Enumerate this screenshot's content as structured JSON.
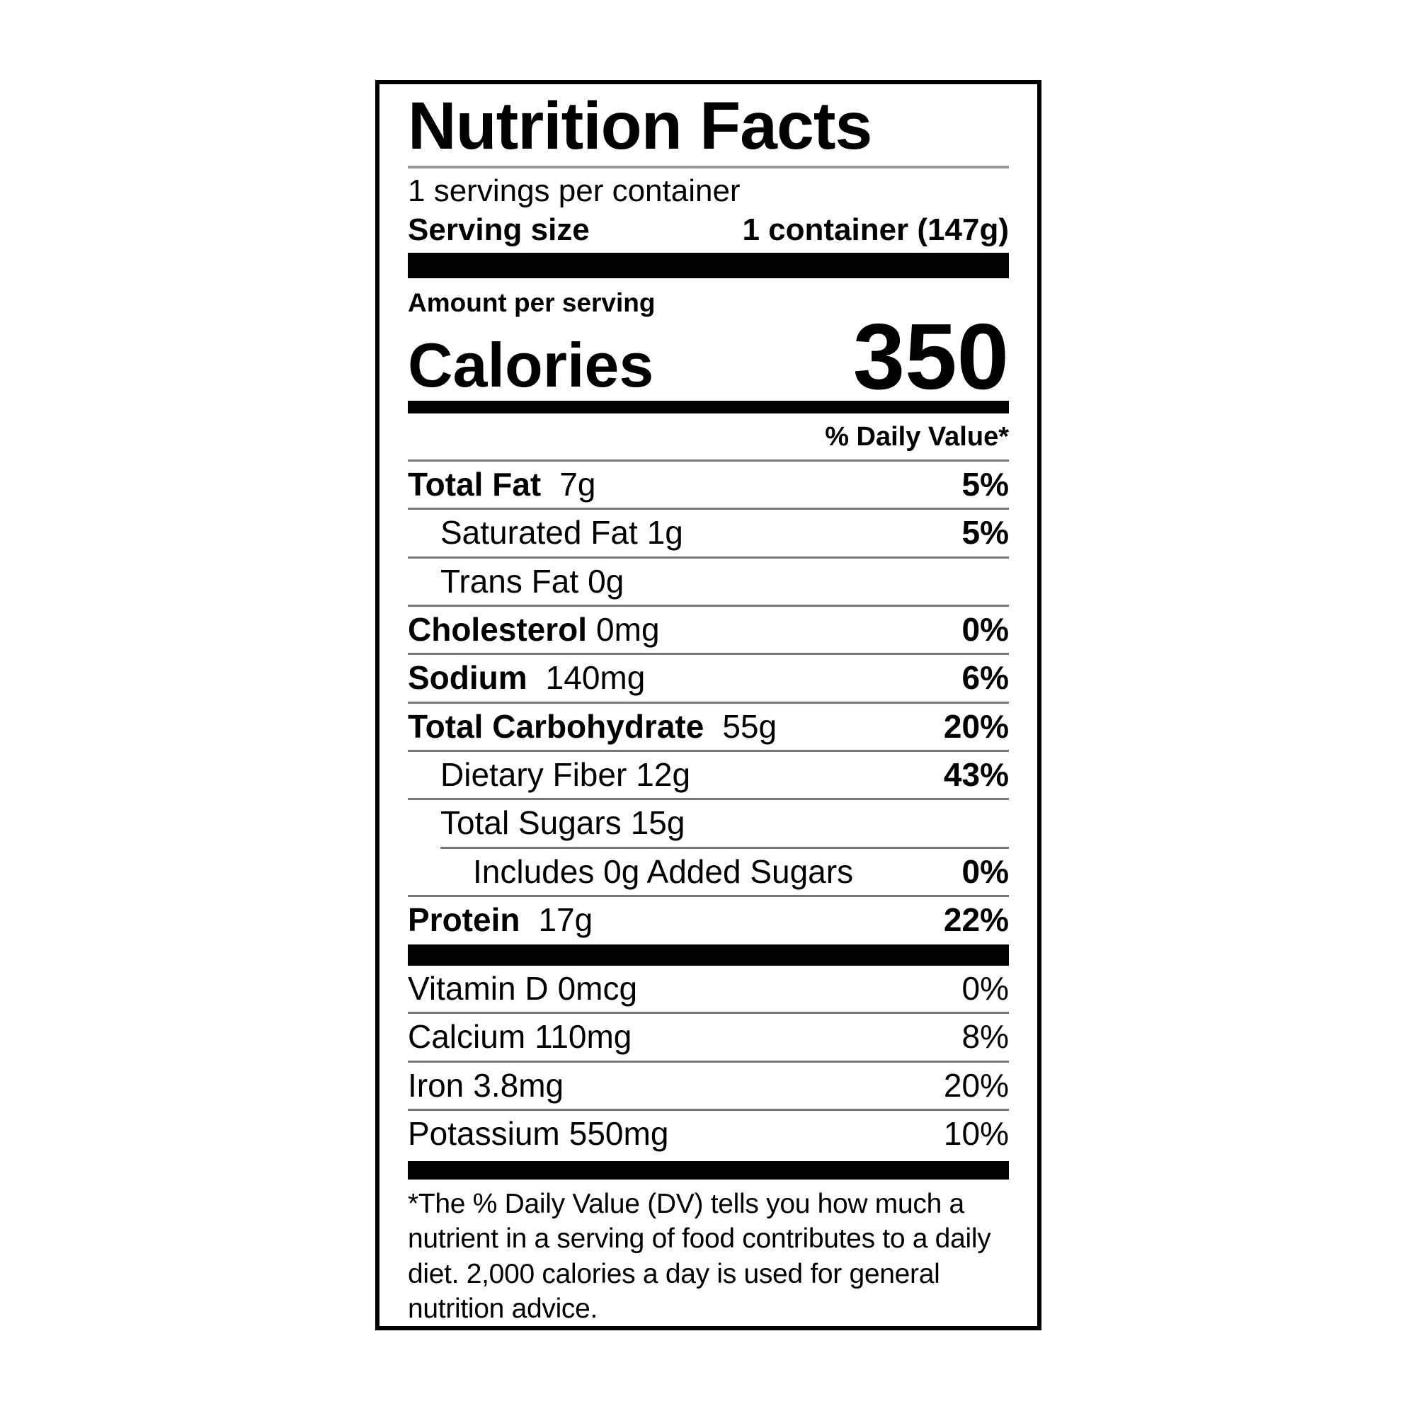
{
  "label": {
    "title": "Nutrition Facts",
    "servings_per_container": "1 servings per container",
    "serving_size_label": "Serving size",
    "serving_size_value": "1 container (147g)",
    "amount_per_serving": "Amount per serving",
    "calories_label": "Calories",
    "calories_value": "350",
    "daily_value_header": "% Daily Value*",
    "nutrients": [
      {
        "name": "Total Fat",
        "amount": "7g",
        "dv": "5%"
      },
      {
        "name": "Saturated Fat",
        "amount": "1g",
        "dv": "5%"
      },
      {
        "name": "Trans Fat",
        "amount": "0g",
        "dv": ""
      },
      {
        "name": "Cholesterol",
        "amount": "0mg",
        "dv": "0%"
      },
      {
        "name": "Sodium",
        "amount": "140mg",
        "dv": "6%"
      },
      {
        "name": "Total Carbohydrate",
        "amount": "55g",
        "dv": "20%"
      },
      {
        "name": "Dietary Fiber",
        "amount": "12g",
        "dv": "43%"
      },
      {
        "name": "Total Sugars",
        "amount": "15g",
        "dv": ""
      },
      {
        "name": "Includes 0g Added Sugars",
        "amount": "",
        "dv": "0%"
      },
      {
        "name": "Protein",
        "amount": "17g",
        "dv": "22%"
      }
    ],
    "vitamins": [
      {
        "name": "Vitamin D",
        "amount": "0mcg",
        "dv": "0%"
      },
      {
        "name": "Calcium",
        "amount": "110mg",
        "dv": "8%"
      },
      {
        "name": "Iron",
        "amount": "3.8mg",
        "dv": "20%"
      },
      {
        "name": "Potassium",
        "amount": "550mg",
        "dv": "10%"
      }
    ],
    "footnote": "*The % Daily Value (DV) tells you how much a nutrient in a serving of food contributes to a daily diet. 2,000 calories a day is used for general nutrition advice.",
    "colors": {
      "ink": "#000000",
      "rule_gray": "#9a9a9a",
      "divider_gray": "#777777"
    }
  }
}
